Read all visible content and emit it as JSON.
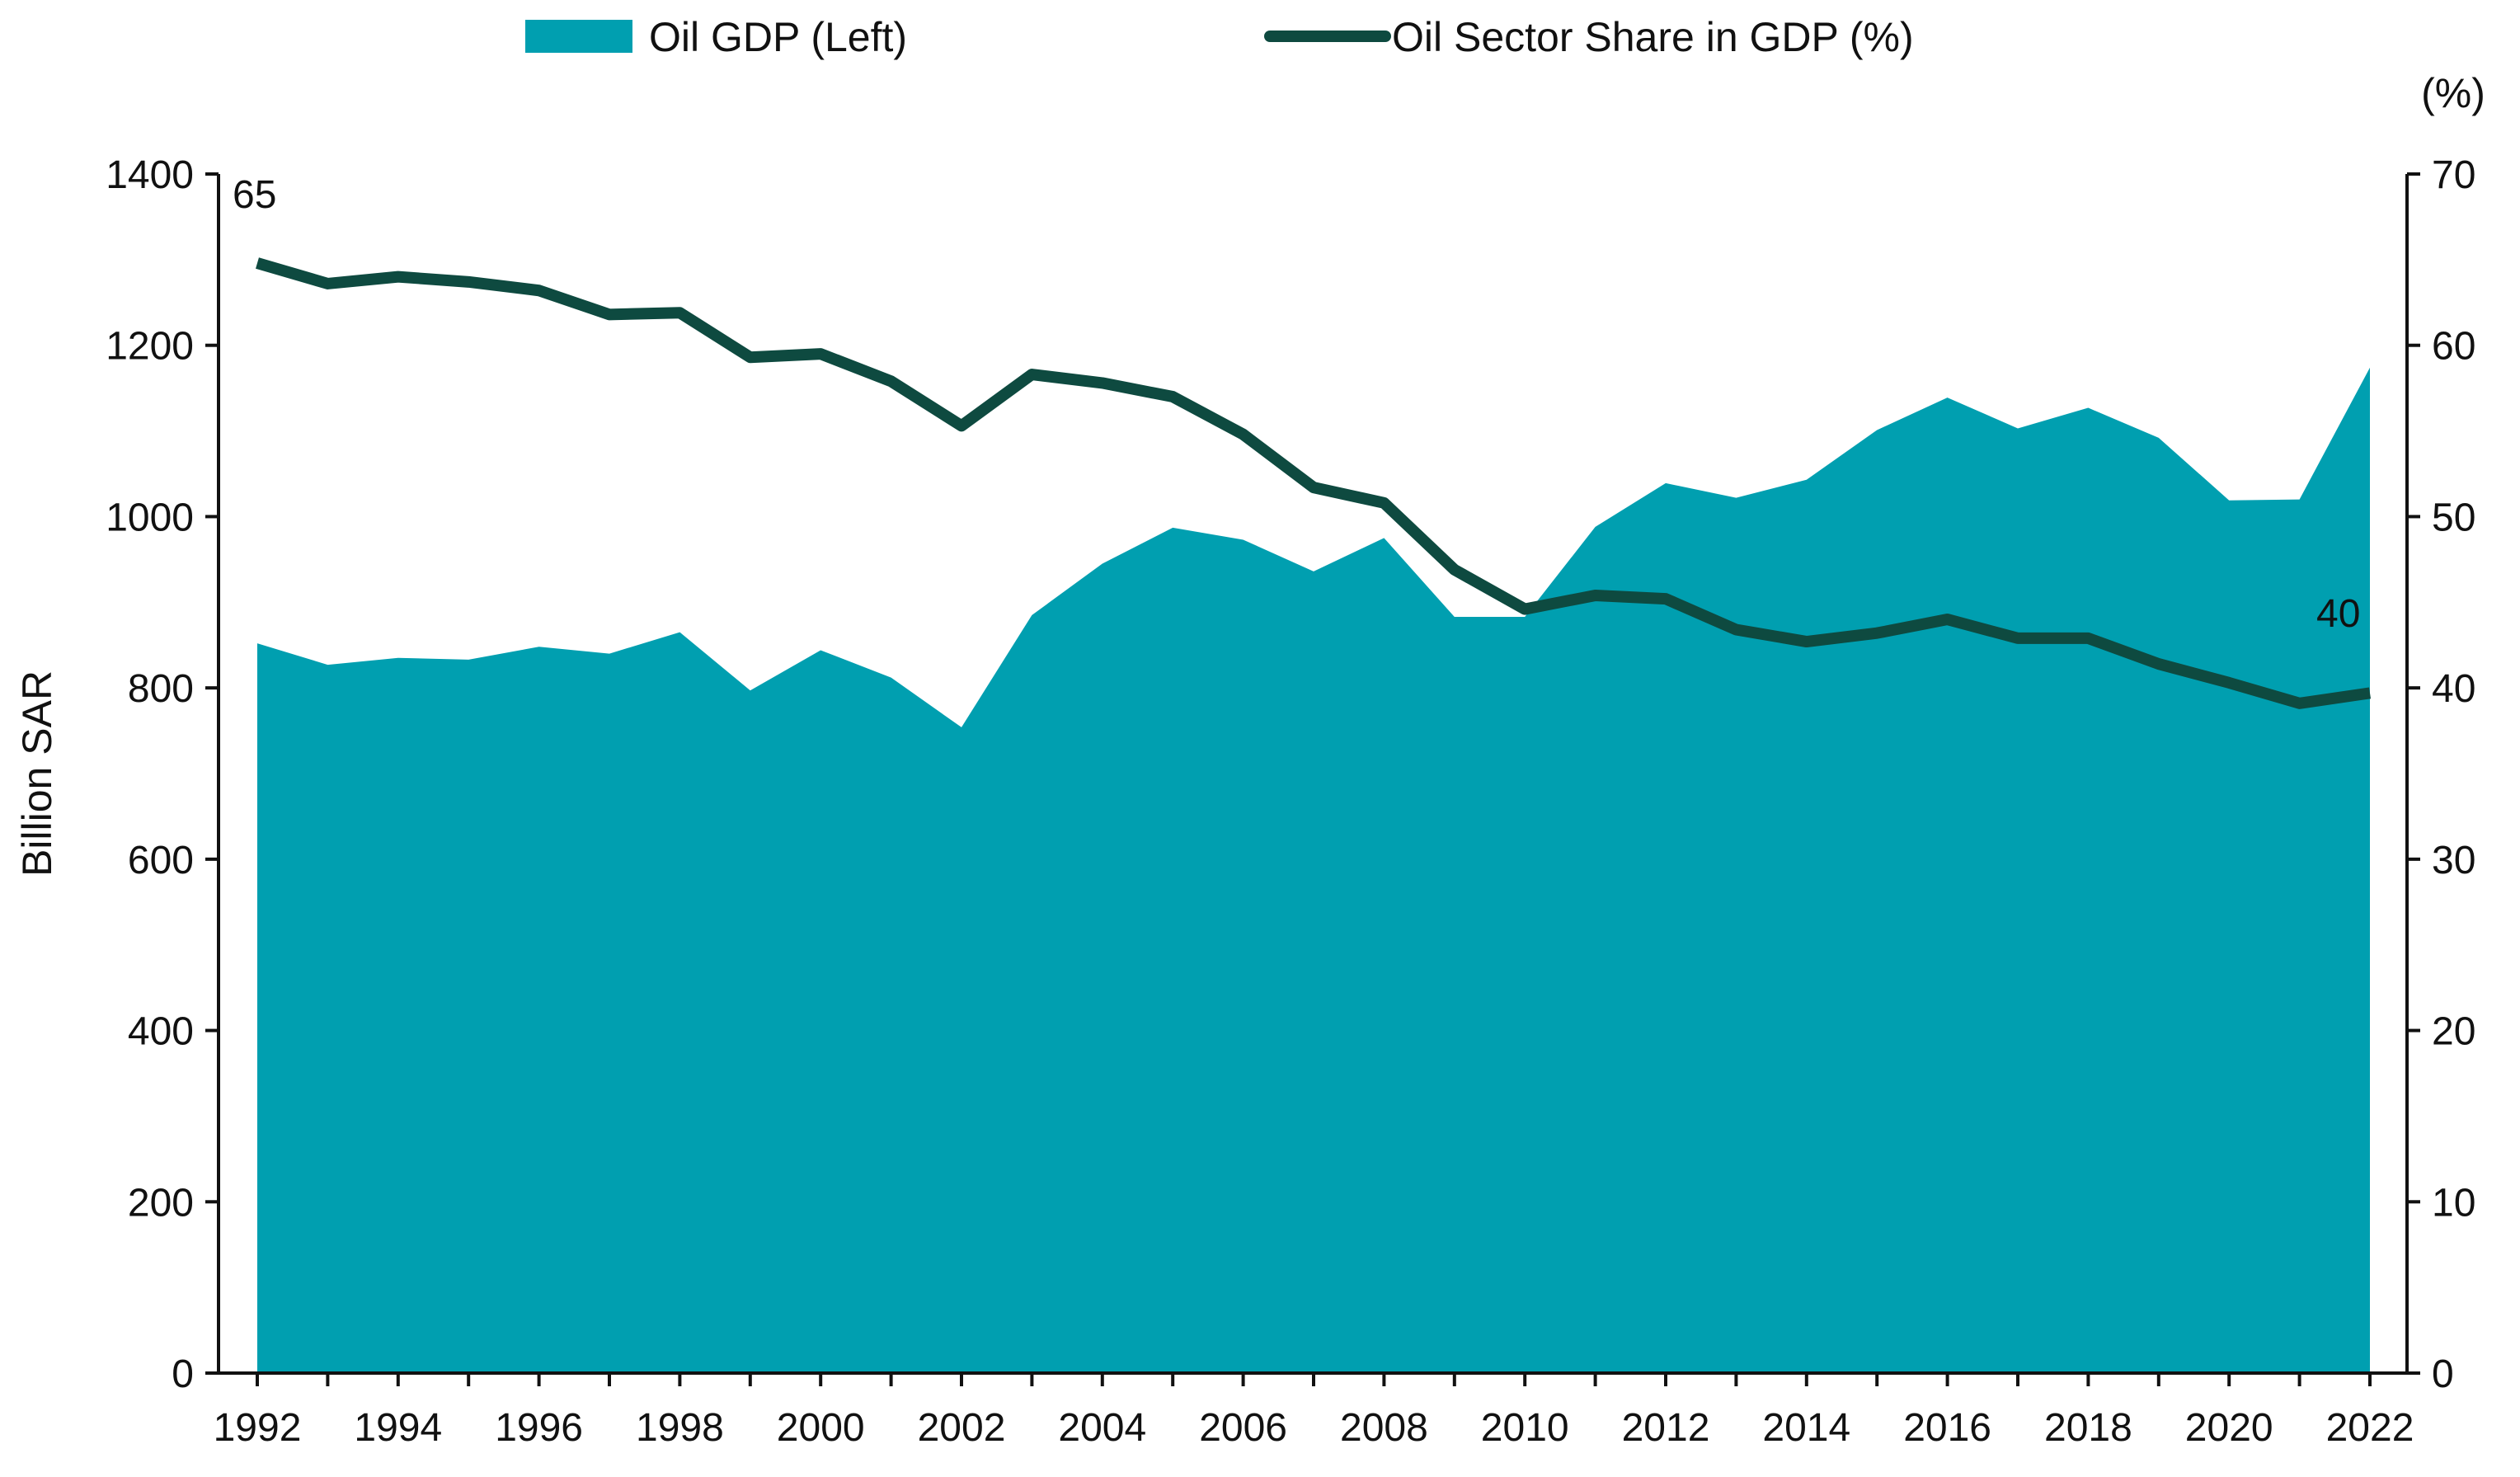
{
  "chart_data": {
    "type": "area+line",
    "legend": {
      "placement": "top",
      "entries": [
        "Oil GDP (Left)",
        "Oil Sector Share in GDP (%)"
      ]
    },
    "colors": {
      "area": "#009fb0",
      "line": "#0e4a40"
    },
    "left_axis": {
      "label": "Billion SAR",
      "ylim": [
        0,
        1400
      ],
      "ticks": [
        0,
        200,
        400,
        600,
        800,
        1000,
        1200,
        1400
      ]
    },
    "right_axis": {
      "label": "(%)",
      "ylim": [
        0,
        70
      ],
      "ticks": [
        0,
        10,
        20,
        30,
        40,
        50,
        60,
        70
      ]
    },
    "x": [
      1992,
      1993,
      1994,
      1995,
      1996,
      1997,
      1998,
      1999,
      2000,
      2001,
      2002,
      2003,
      2004,
      2005,
      2006,
      2007,
      2008,
      2009,
      2010,
      2011,
      2012,
      2013,
      2014,
      2015,
      2016,
      2017,
      2018,
      2019,
      2020,
      2021,
      2022
    ],
    "x_tick_labels": [
      "1992",
      "1994",
      "1996",
      "1998",
      "2000",
      "2002",
      "2004",
      "2006",
      "2008",
      "2010",
      "2012",
      "2014",
      "2016",
      "2018",
      "2020",
      "2022"
    ],
    "series": [
      {
        "name": "Oil GDP (Left)",
        "type": "area",
        "axis": "left",
        "values": [
          852,
          827,
          835,
          833,
          848,
          840,
          865,
          797,
          844,
          812,
          754,
          885,
          945,
          987,
          973,
          936,
          975,
          883,
          883,
          988,
          1039,
          1022,
          1043,
          1101,
          1139,
          1103,
          1127,
          1092,
          1019,
          1020,
          1174
        ]
      },
      {
        "name": "Oil Sector Share in GDP (%)",
        "type": "line",
        "axis": "right",
        "values": [
          64.8,
          63.6,
          64.0,
          63.7,
          63.2,
          61.8,
          61.9,
          59.3,
          59.5,
          57.9,
          55.3,
          58.3,
          57.8,
          57.0,
          54.8,
          51.7,
          50.8,
          46.9,
          44.6,
          45.4,
          45.2,
          43.4,
          42.7,
          43.2,
          44.0,
          42.9,
          42.9,
          41.4,
          40.3,
          39.1,
          39.7
        ]
      }
    ],
    "annotations": [
      {
        "text": "65",
        "x": 1992
      },
      {
        "text": "40",
        "x": 2022
      }
    ]
  }
}
